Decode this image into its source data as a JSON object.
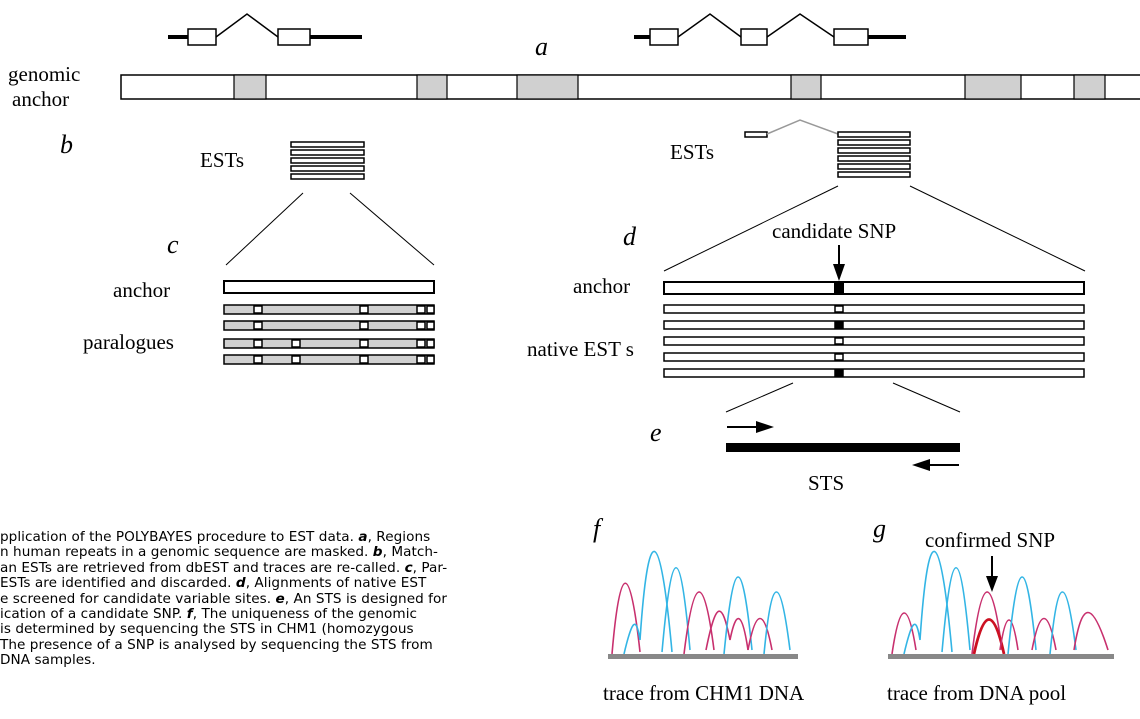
{
  "panels": {
    "a": "a",
    "b": "b",
    "c": "c",
    "d": "d",
    "e": "e",
    "f": "f",
    "g": "g"
  },
  "labels": {
    "genomic_anchor_line1": "genomic",
    "genomic_anchor_line2": "anchor",
    "ests_left": "ESTs",
    "ests_right": "ESTs",
    "anchor_c": "anchor",
    "paralogues": "paralogues",
    "candidate_snp": "candidate SNP",
    "anchor_d": "anchor",
    "native_ests": "native EST s",
    "sts": "STS",
    "confirmed_snp": "confirmed SNP",
    "trace_chm1": "trace from CHM1 DNA",
    "trace_pool": "trace from DNA pool"
  },
  "caption": {
    "part1": "pplication of the POLYBAYES procedure to EST data. ",
    "a": "a",
    "part2": ", Regions\nn human repeats in a genomic sequence are masked. ",
    "b": "b",
    "part3": ", Match-\nan ESTs are retrieved from dbEST and traces are re-called. ",
    "c": "c",
    "part4": ", Par-\nESTs are identified and discarded. ",
    "d": "d",
    "part5": ", Alignments of native EST\ne screened for candidate variable sites. ",
    "e": "e",
    "part6": ", An STS is designed for\nication of a candidate SNP. ",
    "f": "f",
    "part7": ", The uniqueness of the genomic\nis determined by sequencing the STS in CHM1 (homozygous\n The presence of a SNP is analysed by sequencing the STS from\nDNA samples."
  },
  "colors": {
    "masked_fill": "#d0d0d0",
    "trace_cyan": "#33b5e5",
    "trace_magenta": "#c8306e",
    "trace_red": "#cc1122",
    "baseline": "#888888"
  }
}
